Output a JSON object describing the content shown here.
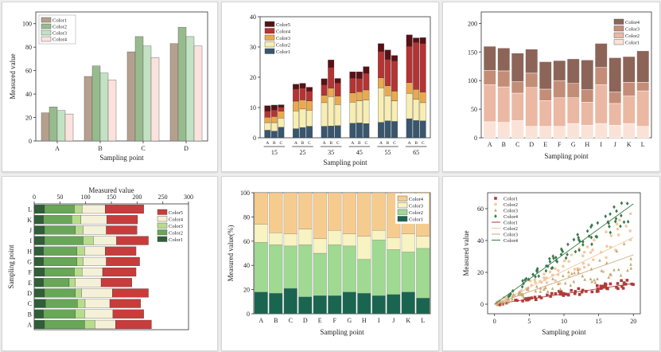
{
  "charts": [
    {
      "id": "p1",
      "type": "bar",
      "orientation": "vertical",
      "categories": [
        "A",
        "B",
        "C",
        "D"
      ],
      "series": [
        {
          "name": "Color1",
          "color": "#b5a08e",
          "values": [
            24,
            55,
            76,
            83
          ]
        },
        {
          "name": "Color2",
          "color": "#98bb8e",
          "values": [
            29,
            64,
            89,
            97
          ]
        },
        {
          "name": "Color3",
          "color": "#c3e2c4",
          "values": [
            26,
            58,
            81,
            89
          ]
        },
        {
          "name": "Color4",
          "color": "#fbe2dc",
          "values": [
            23,
            52,
            71,
            81
          ]
        }
      ],
      "ylim": [
        0,
        110
      ],
      "yticks": [
        0,
        20,
        40,
        60,
        80,
        100
      ],
      "xlabel": "Sampling point",
      "ylabel": "Measured value",
      "legend": "top-left"
    },
    {
      "id": "p2",
      "type": "stacked-bar",
      "orientation": "vertical",
      "groups": [
        "15",
        "25",
        "35",
        "45",
        "55",
        "65"
      ],
      "subcategories": [
        "A",
        "B",
        "C"
      ],
      "series": [
        {
          "name": "Color1",
          "color": "#38566e",
          "values": [
            [
              2.5,
              2.2,
              3.5
            ],
            [
              3.0,
              3.4,
              3.8
            ],
            [
              3.8,
              3.9,
              4.0
            ],
            [
              4.8,
              4.9,
              4.7
            ],
            [
              5.1,
              5.6,
              5.4
            ],
            [
              6.3,
              5.7,
              5.6
            ]
          ]
        },
        {
          "name": "Color2",
          "color": "#f8eeb2",
          "values": [
            [
              2.5,
              2.8,
              3.0
            ],
            [
              5.9,
              6.1,
              5.3
            ],
            [
              7.8,
              9.7,
              7.0
            ],
            [
              7.0,
              7.3,
              7.8
            ],
            [
              11.4,
              8.3,
              6.8
            ],
            [
              8.4,
              7.0,
              6.0
            ]
          ]
        },
        {
          "name": "Color3",
          "color": "#eba94c",
          "values": [
            [
              1.8,
              2.0,
              2.3
            ],
            [
              3.2,
              3.0,
              3.1
            ],
            [
              2.4,
              2.8,
              2.8
            ],
            [
              3.0,
              3.0,
              3.3
            ],
            [
              3.3,
              3.3,
              3.2
            ],
            [
              3.5,
              3.3,
              3.5
            ]
          ]
        },
        {
          "name": "Color4",
          "color": "#b63333",
          "values": [
            [
              2.0,
              2.2,
              1.3
            ],
            [
              4.0,
              3.9,
              3.2
            ],
            [
              3.5,
              6.8,
              4.3
            ],
            [
              4.9,
              4.4,
              5.5
            ],
            [
              8.7,
              8.7,
              10.0
            ],
            [
              12.0,
              15.5,
              16.0
            ]
          ]
        },
        {
          "name": "Color5",
          "color": "#5a1014",
          "values": [
            [
              1.8,
              1.6,
              0.8
            ],
            [
              1.6,
              1.6,
              1.3
            ],
            [
              2.0,
              2.5,
              1.5
            ],
            [
              2.1,
              2.2,
              2.2
            ],
            [
              2.6,
              3.1,
              1.8
            ],
            [
              3.8,
              1.5,
              2.0
            ]
          ]
        }
      ],
      "ylim": [
        0,
        40
      ],
      "yticks": [
        0,
        10,
        20,
        30,
        40
      ],
      "xlabel": "Sampling point",
      "ylabel": "",
      "legend": "top-left"
    },
    {
      "id": "p3",
      "type": "stacked-bar",
      "orientation": "vertical",
      "categories": [
        "A",
        "B",
        "C",
        "D",
        "E",
        "F",
        "G",
        "H",
        "I",
        "J",
        "K",
        "L"
      ],
      "series": [
        {
          "name": "Color1",
          "color": "#fbe2d6",
          "values": [
            28,
            27,
            30,
            20,
            20,
            20,
            25,
            22,
            25,
            22,
            25,
            20
          ]
        },
        {
          "name": "Color2",
          "color": "#eab8a3",
          "values": [
            65,
            62,
            48,
            68,
            45,
            50,
            45,
            40,
            68,
            38,
            48,
            62
          ]
        },
        {
          "name": "Color3",
          "color": "#c48d78",
          "values": [
            25,
            28,
            20,
            25,
            20,
            30,
            25,
            22,
            30,
            20,
            24,
            15
          ]
        },
        {
          "name": "Color4",
          "color": "#8c6558",
          "values": [
            42,
            40,
            50,
            42,
            48,
            35,
            43,
            52,
            42,
            60,
            45,
            55
          ]
        }
      ],
      "ylim": [
        0,
        220
      ],
      "yticks": [
        0,
        50,
        100,
        150,
        200
      ],
      "xlabel": "Sampling point",
      "ylabel": "",
      "legend": "top-right"
    },
    {
      "id": "p4",
      "type": "stacked-bar",
      "orientation": "horizontal",
      "categories": [
        "A",
        "B",
        "C",
        "D",
        "E",
        "F",
        "G",
        "H",
        "I",
        "J",
        "K",
        "L"
      ],
      "series": [
        {
          "name": "Color1",
          "color": "#2f5e38",
          "values": [
            20,
            18,
            22,
            20,
            18,
            20,
            18,
            18,
            20,
            20,
            18,
            20
          ]
        },
        {
          "name": "Color2",
          "color": "#68a658",
          "values": [
            78,
            62,
            62,
            60,
            50,
            58,
            65,
            65,
            75,
            60,
            55,
            58
          ]
        },
        {
          "name": "Color3",
          "color": "#b7dc8c",
          "values": [
            20,
            18,
            15,
            12,
            12,
            15,
            12,
            15,
            20,
            15,
            18,
            15
          ]
        },
        {
          "name": "Color4",
          "color": "#f5f1d8",
          "values": [
            40,
            55,
            48,
            60,
            50,
            40,
            45,
            40,
            45,
            45,
            50,
            45
          ]
        },
        {
          "name": "Color5",
          "color": "#c83c3c",
          "values": [
            70,
            60,
            60,
            70,
            60,
            65,
            65,
            60,
            62,
            60,
            60,
            75
          ]
        }
      ],
      "xlim": [
        0,
        300
      ],
      "xticks": [
        0,
        50,
        100,
        150,
        200,
        250,
        300
      ],
      "xlabel": "Measured value",
      "ylabel": "Sampling point",
      "legend": "right"
    },
    {
      "id": "p5",
      "type": "stacked-bar-percent",
      "orientation": "vertical",
      "categories": [
        "A",
        "B",
        "C",
        "D",
        "E",
        "F",
        "G",
        "H",
        "I",
        "J",
        "K",
        "L"
      ],
      "series": [
        {
          "name": "Color1",
          "color": "#1a6550",
          "values": [
            18,
            17,
            21,
            14,
            15,
            15,
            18,
            17,
            15,
            16,
            18,
            13
          ]
        },
        {
          "name": "Color2",
          "color": "#9fd992",
          "values": [
            41,
            40,
            35,
            43,
            35,
            42,
            38,
            28,
            46,
            37,
            33,
            41
          ]
        },
        {
          "name": "Color3",
          "color": "#f7f3c2",
          "values": [
            15,
            10,
            10,
            13,
            12,
            12,
            10,
            19,
            8,
            10,
            15,
            10
          ]
        },
        {
          "name": "Color4",
          "color": "#f6cc8e",
          "values": [
            26,
            33,
            34,
            30,
            38,
            31,
            34,
            36,
            31,
            37,
            34,
            36
          ]
        }
      ],
      "ylim": [
        0,
        100
      ],
      "yticks": [
        0,
        20,
        40,
        60,
        80,
        100
      ],
      "xlabel": "Sampling point",
      "ylabel": "Measured value(%)",
      "legend": "top-right"
    },
    {
      "id": "p6",
      "type": "scatter",
      "series": [
        {
          "name": "Color1",
          "color": "#b13a3a",
          "marker": "square",
          "slope": 0.65,
          "spread": 0.18,
          "seed": 3
        },
        {
          "name": "Color2",
          "color": "#f3c9a0",
          "marker": "circle",
          "slope": 2.1,
          "spread": 0.42,
          "seed": 7
        },
        {
          "name": "Color3",
          "color": "#c8a978",
          "marker": "triangle",
          "slope": 1.55,
          "spread": 0.4,
          "seed": 11
        },
        {
          "name": "Color4",
          "color": "#3b7a4a",
          "marker": "diamond",
          "slope": 3.15,
          "spread": 0.14,
          "seed": 19
        }
      ],
      "xlim": [
        -1,
        21
      ],
      "ylim": [
        -6,
        70
      ],
      "xticks": [
        0,
        5,
        10,
        15,
        20
      ],
      "yticks": [
        0,
        20,
        40,
        60
      ],
      "xlabel": "Sampling point",
      "ylabel": "Measured value",
      "legend": "top-left"
    }
  ]
}
